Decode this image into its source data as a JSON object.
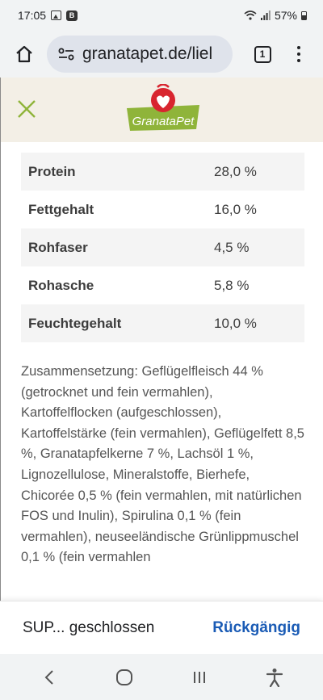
{
  "status_bar": {
    "time": "17:05",
    "b_badge": "B",
    "battery": "57%"
  },
  "browser": {
    "url": "granatapet.de/liel",
    "tab_count": "1"
  },
  "site": {
    "logo_text": "GranataPet"
  },
  "nutrients": [
    {
      "name": "Protein",
      "value": "28,0 %"
    },
    {
      "name": "Fettgehalt",
      "value": "16,0 %"
    },
    {
      "name": "Rohfaser",
      "value": "4,5 %"
    },
    {
      "name": "Rohasche",
      "value": "5,8 %"
    },
    {
      "name": "Feuchtegehalt",
      "value": "10,0 %"
    }
  ],
  "composition": {
    "text": "Zusammensetzung: Geflügelfleisch 44 % (getrocknet und fein vermahlen), Kartoffelflocken (aufgeschlossen), Kartoffelstärke (fein vermahlen), Geflügelfett 8,5 %, Granatapfelkerne 7 %, Lachsöl 1 %, Lignozellulose, Mineralstoffe, Bierhefe, Chicorée 0,5 % (fein vermahlen, mit natürlichen FOS und Inulin), Spirulina 0,1 % (fein vermahlen), neuseeländische Grünlippmuschel 0,1 % (fein vermahlen"
  },
  "snackbar": {
    "message": "SUP... geschlossen",
    "action": "Rückgängig"
  },
  "colors": {
    "accent_green": "#8fb43a",
    "logo_red": "#d8252f",
    "link_blue": "#1a5bb5"
  }
}
